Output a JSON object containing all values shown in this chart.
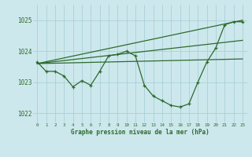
{
  "main_line_x": [
    0,
    1,
    2,
    3,
    4,
    5,
    6,
    7,
    8,
    9,
    10,
    11,
    12,
    13,
    14,
    15,
    16,
    17,
    18,
    19,
    20,
    21,
    22,
    23
  ],
  "main_line_y": [
    1023.65,
    1023.35,
    1023.35,
    1023.2,
    1022.85,
    1023.05,
    1022.9,
    1023.35,
    1023.85,
    1023.9,
    1024.0,
    1023.85,
    1022.9,
    1022.55,
    1022.4,
    1022.25,
    1022.2,
    1022.3,
    1023.0,
    1023.65,
    1024.1,
    1024.85,
    1024.95,
    1024.95
  ],
  "trend1_x": [
    0,
    23
  ],
  "trend1_y": [
    1023.6,
    1023.75
  ],
  "trend2_x": [
    0,
    23
  ],
  "trend2_y": [
    1023.6,
    1024.35
  ],
  "trend3_x": [
    0,
    23
  ],
  "trend3_y": [
    1023.6,
    1025.0
  ],
  "line_color": "#2d6a2d",
  "bg_color": "#cce8ec",
  "grid_color": "#aad0d8",
  "xlabel": "Graphe pression niveau de la mer (hPa)",
  "xlim": [
    -0.5,
    23.5
  ],
  "ylim": [
    1021.7,
    1025.5
  ],
  "yticks": [
    1022,
    1023,
    1024,
    1025
  ],
  "xticks": [
    0,
    1,
    2,
    3,
    4,
    5,
    6,
    7,
    8,
    9,
    10,
    11,
    12,
    13,
    14,
    15,
    16,
    17,
    18,
    19,
    20,
    21,
    22,
    23
  ]
}
